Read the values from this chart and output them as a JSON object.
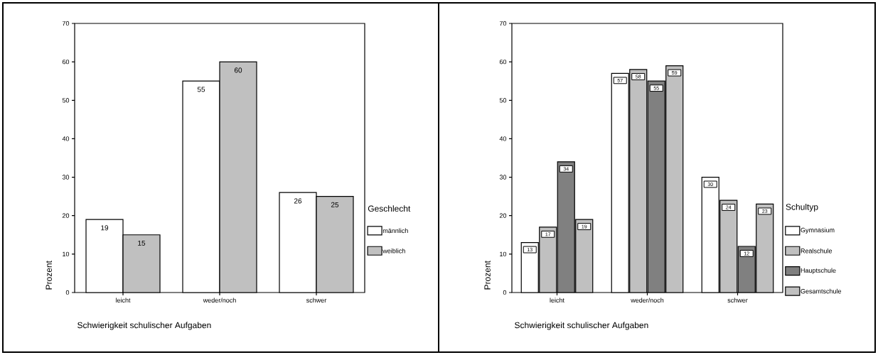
{
  "chart_data": [
    {
      "type": "bar",
      "xlabel": "Schwierigkeit schulischer Aufgaben",
      "ylabel": "Prozent",
      "legend_title": "Geschlecht",
      "categories": [
        "leicht",
        "weder/noch",
        "schwer"
      ],
      "series": [
        {
          "name": "männlich",
          "color": "#ffffff",
          "values": [
            19,
            55,
            26
          ]
        },
        {
          "name": "weiblich",
          "color": "#c0c0c0",
          "values": [
            15,
            60,
            25
          ]
        }
      ],
      "ylim": [
        0,
        70
      ],
      "yticks": [
        0,
        10,
        20,
        30,
        40,
        50,
        60,
        70
      ],
      "data_labels": true,
      "legend": "right"
    },
    {
      "type": "bar",
      "xlabel": "Schwierigkeit schulischer Aufgaben",
      "ylabel": "Prozent",
      "legend_title": "Schultyp",
      "categories": [
        "leicht",
        "weder/noch",
        "schwer"
      ],
      "series": [
        {
          "name": "Gymnasium",
          "color": "#ffffff",
          "values": [
            13,
            57,
            30
          ]
        },
        {
          "name": "Realschule",
          "color": "#c0c0c0",
          "values": [
            17,
            58,
            24
          ]
        },
        {
          "name": "Hauptschule",
          "color": "#808080",
          "values": [
            34,
            55,
            12
          ]
        },
        {
          "name": "Gesamtschule",
          "color": "#c0c0c0",
          "values": [
            19,
            59,
            23
          ]
        }
      ],
      "ylim": [
        0,
        70
      ],
      "yticks": [
        0,
        10,
        20,
        30,
        40,
        50,
        60,
        70
      ],
      "data_labels": true,
      "legend": "right"
    }
  ]
}
